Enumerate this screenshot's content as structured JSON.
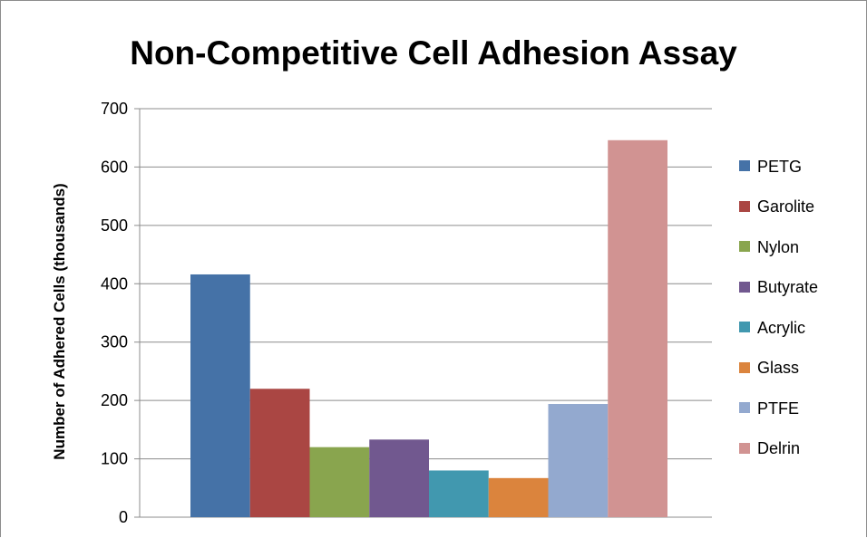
{
  "chart_data": {
    "type": "bar",
    "title": "Non-Competitive Cell Adhesion Assay",
    "xlabel": "",
    "ylabel": "Number of Adhered Cells (thousands)",
    "ylim": [
      0,
      700
    ],
    "yticks": [
      "0",
      "100",
      "200",
      "300",
      "400",
      "500",
      "600",
      "700"
    ],
    "grid": true,
    "legend_position": "right",
    "categories": [
      ""
    ],
    "series": [
      {
        "name": "PETG",
        "values": [
          416
        ],
        "color": "#4572a7"
      },
      {
        "name": "Garolite",
        "values": [
          220
        ],
        "color": "#aa4643"
      },
      {
        "name": "Nylon",
        "values": [
          120
        ],
        "color": "#89a54e"
      },
      {
        "name": "Butyrate",
        "values": [
          133
        ],
        "color": "#71588f"
      },
      {
        "name": "Acrylic",
        "values": [
          80
        ],
        "color": "#4198af"
      },
      {
        "name": "Glass",
        "values": [
          67
        ],
        "color": "#db843d"
      },
      {
        "name": "PTFE",
        "values": [
          194
        ],
        "color": "#93a9cf"
      },
      {
        "name": "Delrin",
        "values": [
          646
        ],
        "color": "#d19392"
      }
    ]
  }
}
